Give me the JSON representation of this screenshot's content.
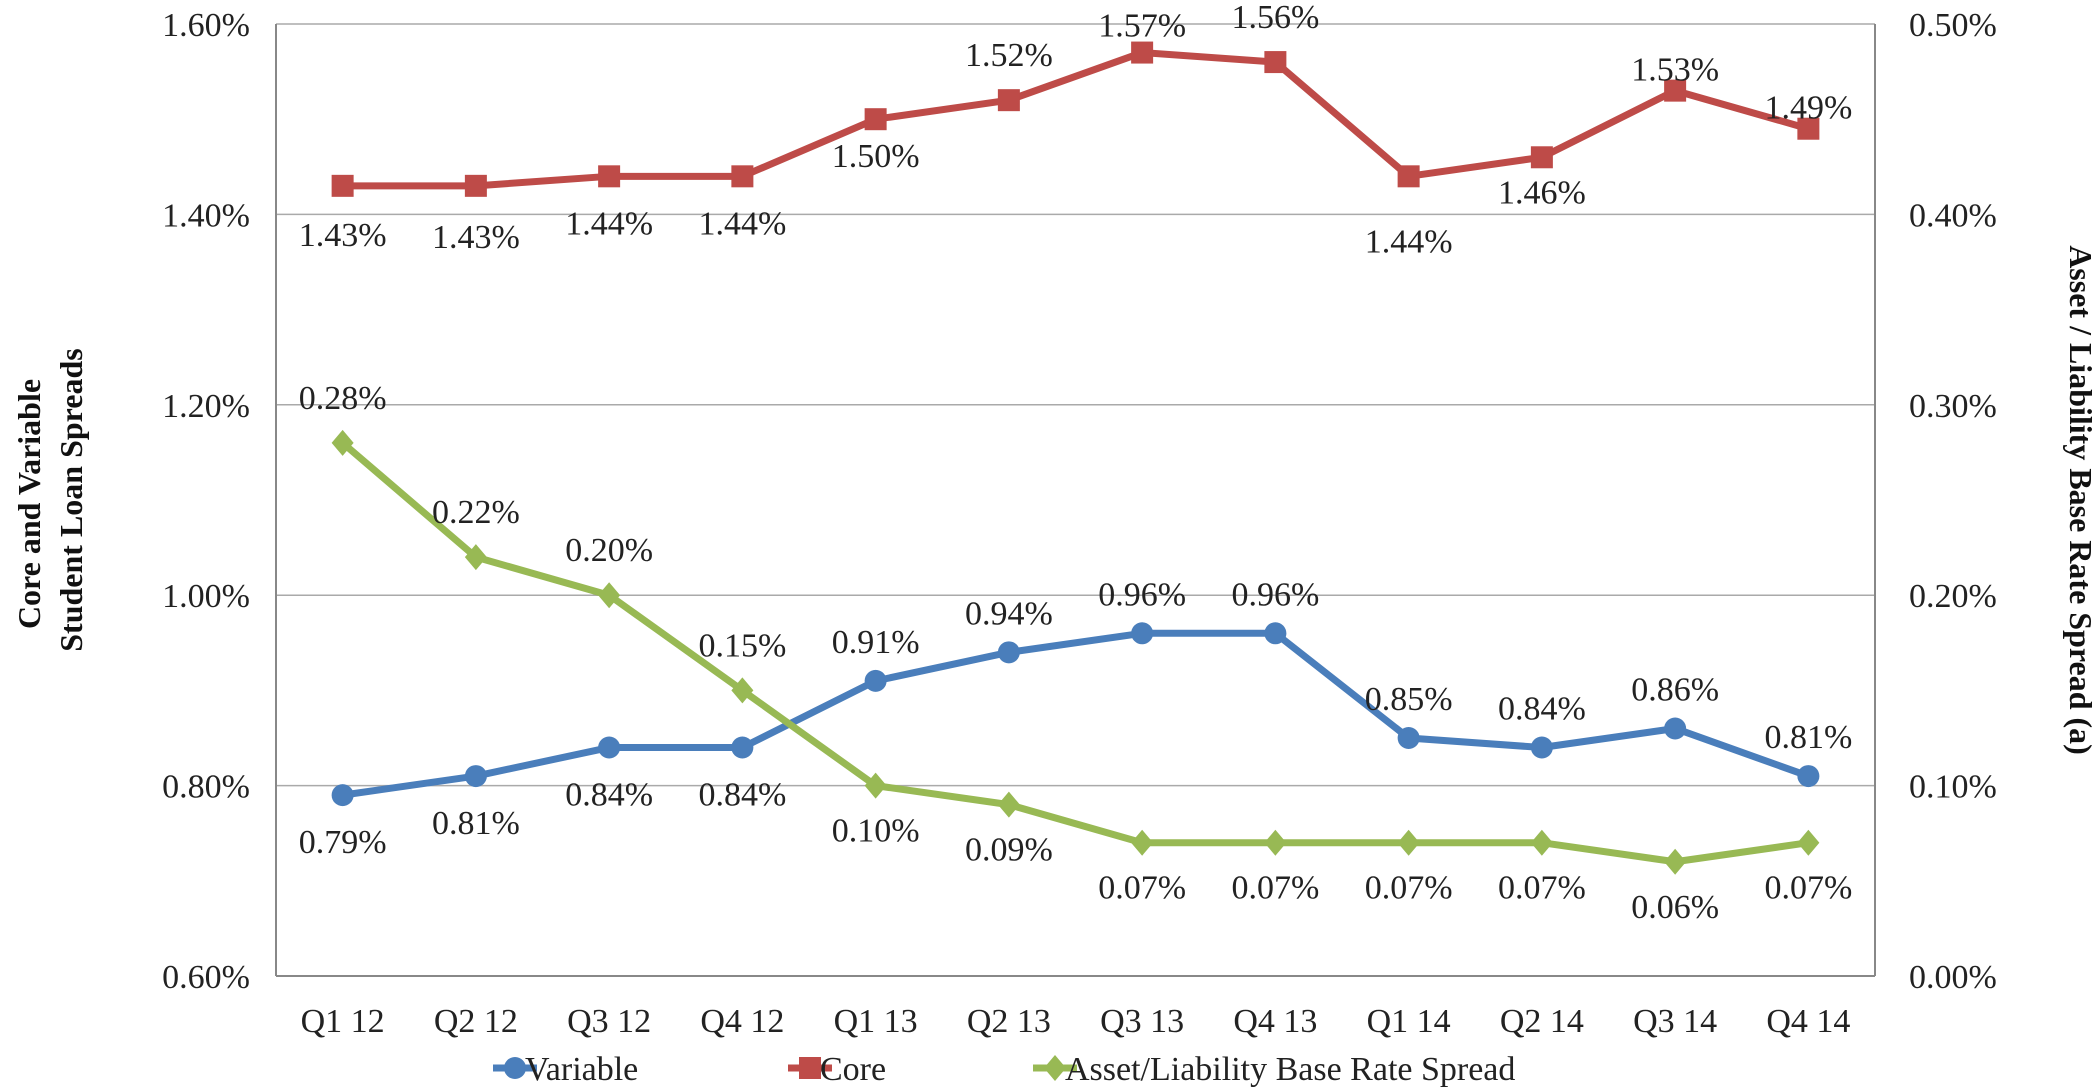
{
  "chart_data": {
    "type": "line",
    "categories": [
      "Q1 12",
      "Q2 12",
      "Q3 12",
      "Q4 12",
      "Q1 13",
      "Q2 13",
      "Q3 13",
      "Q4 13",
      "Q1 14",
      "Q2 14",
      "Q3 14",
      "Q4 14"
    ],
    "ylabel": "Core and Variable Student Loan Spreads",
    "ylabel_right": "Asset / Liability Base Rate Spread (a)",
    "ylim": [
      0.6,
      1.6
    ],
    "ylim_right": [
      0.0,
      0.5
    ],
    "yticks": [
      "0.60%",
      "0.80%",
      "1.00%",
      "1.20%",
      "1.40%",
      "1.60%"
    ],
    "yticks_right": [
      "0.00%",
      "0.10%",
      "0.20%",
      "0.30%",
      "0.40%",
      "0.50%"
    ],
    "grid": true,
    "legend_position": "bottom",
    "series": [
      {
        "name": "Variable",
        "axis": "left",
        "color": "#4a7ebb",
        "marker": "circle",
        "values": [
          0.79,
          0.81,
          0.84,
          0.84,
          0.91,
          0.94,
          0.96,
          0.96,
          0.85,
          0.84,
          0.86,
          0.81
        ],
        "labels": [
          "0.79%",
          "0.81%",
          "0.84%",
          "0.84%",
          "0.91%",
          "0.94%",
          "0.96%",
          "0.96%",
          "0.85%",
          "0.84%",
          "0.86%",
          "0.81%"
        ]
      },
      {
        "name": "Core",
        "axis": "left",
        "color": "#be4b48",
        "marker": "square",
        "values": [
          1.43,
          1.43,
          1.44,
          1.44,
          1.5,
          1.52,
          1.57,
          1.56,
          1.44,
          1.46,
          1.53,
          1.49
        ],
        "labels": [
          "1.43%",
          "1.43%",
          "1.44%",
          "1.44%",
          "1.50%",
          "1.52%",
          "1.57%",
          "1.56%",
          "1.44%",
          "1.46%",
          "1.53%",
          "1.49%"
        ]
      },
      {
        "name": "Asset/Liability Base Rate Spread",
        "axis": "right",
        "color": "#98b954",
        "marker": "diamond",
        "values": [
          0.28,
          0.22,
          0.2,
          0.15,
          0.1,
          0.09,
          0.07,
          0.07,
          0.07,
          0.07,
          0.06,
          0.07
        ],
        "labels": [
          "0.28%",
          "0.22%",
          "0.20%",
          "0.15%",
          "0.10%",
          "0.09%",
          "0.07%",
          "0.07%",
          "0.07%",
          "0.07%",
          "0.06%",
          "0.07%"
        ]
      }
    ]
  }
}
